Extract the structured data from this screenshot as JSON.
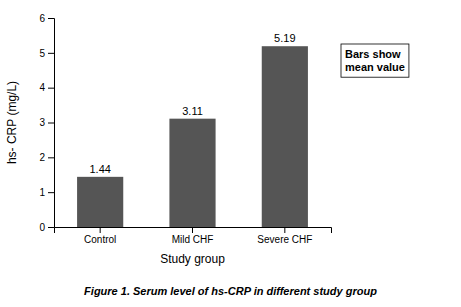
{
  "chart_data": {
    "type": "bar",
    "categories": [
      "Control",
      "Mild CHF",
      "Severe CHF"
    ],
    "values": [
      1.44,
      3.11,
      5.19
    ],
    "color": "#555555",
    "xlabel": "Study group",
    "ylabel": "hs- CRP (mg/L)",
    "annotation": "Bars show\nmean value",
    "caption": "Figure 1. Serum level of hs-CRP in different study group",
    "ylim": [
      0,
      6
    ],
    "yticks": [
      0,
      1,
      2,
      3,
      4,
      5,
      6
    ],
    "grid": false,
    "data_labels": true
  }
}
